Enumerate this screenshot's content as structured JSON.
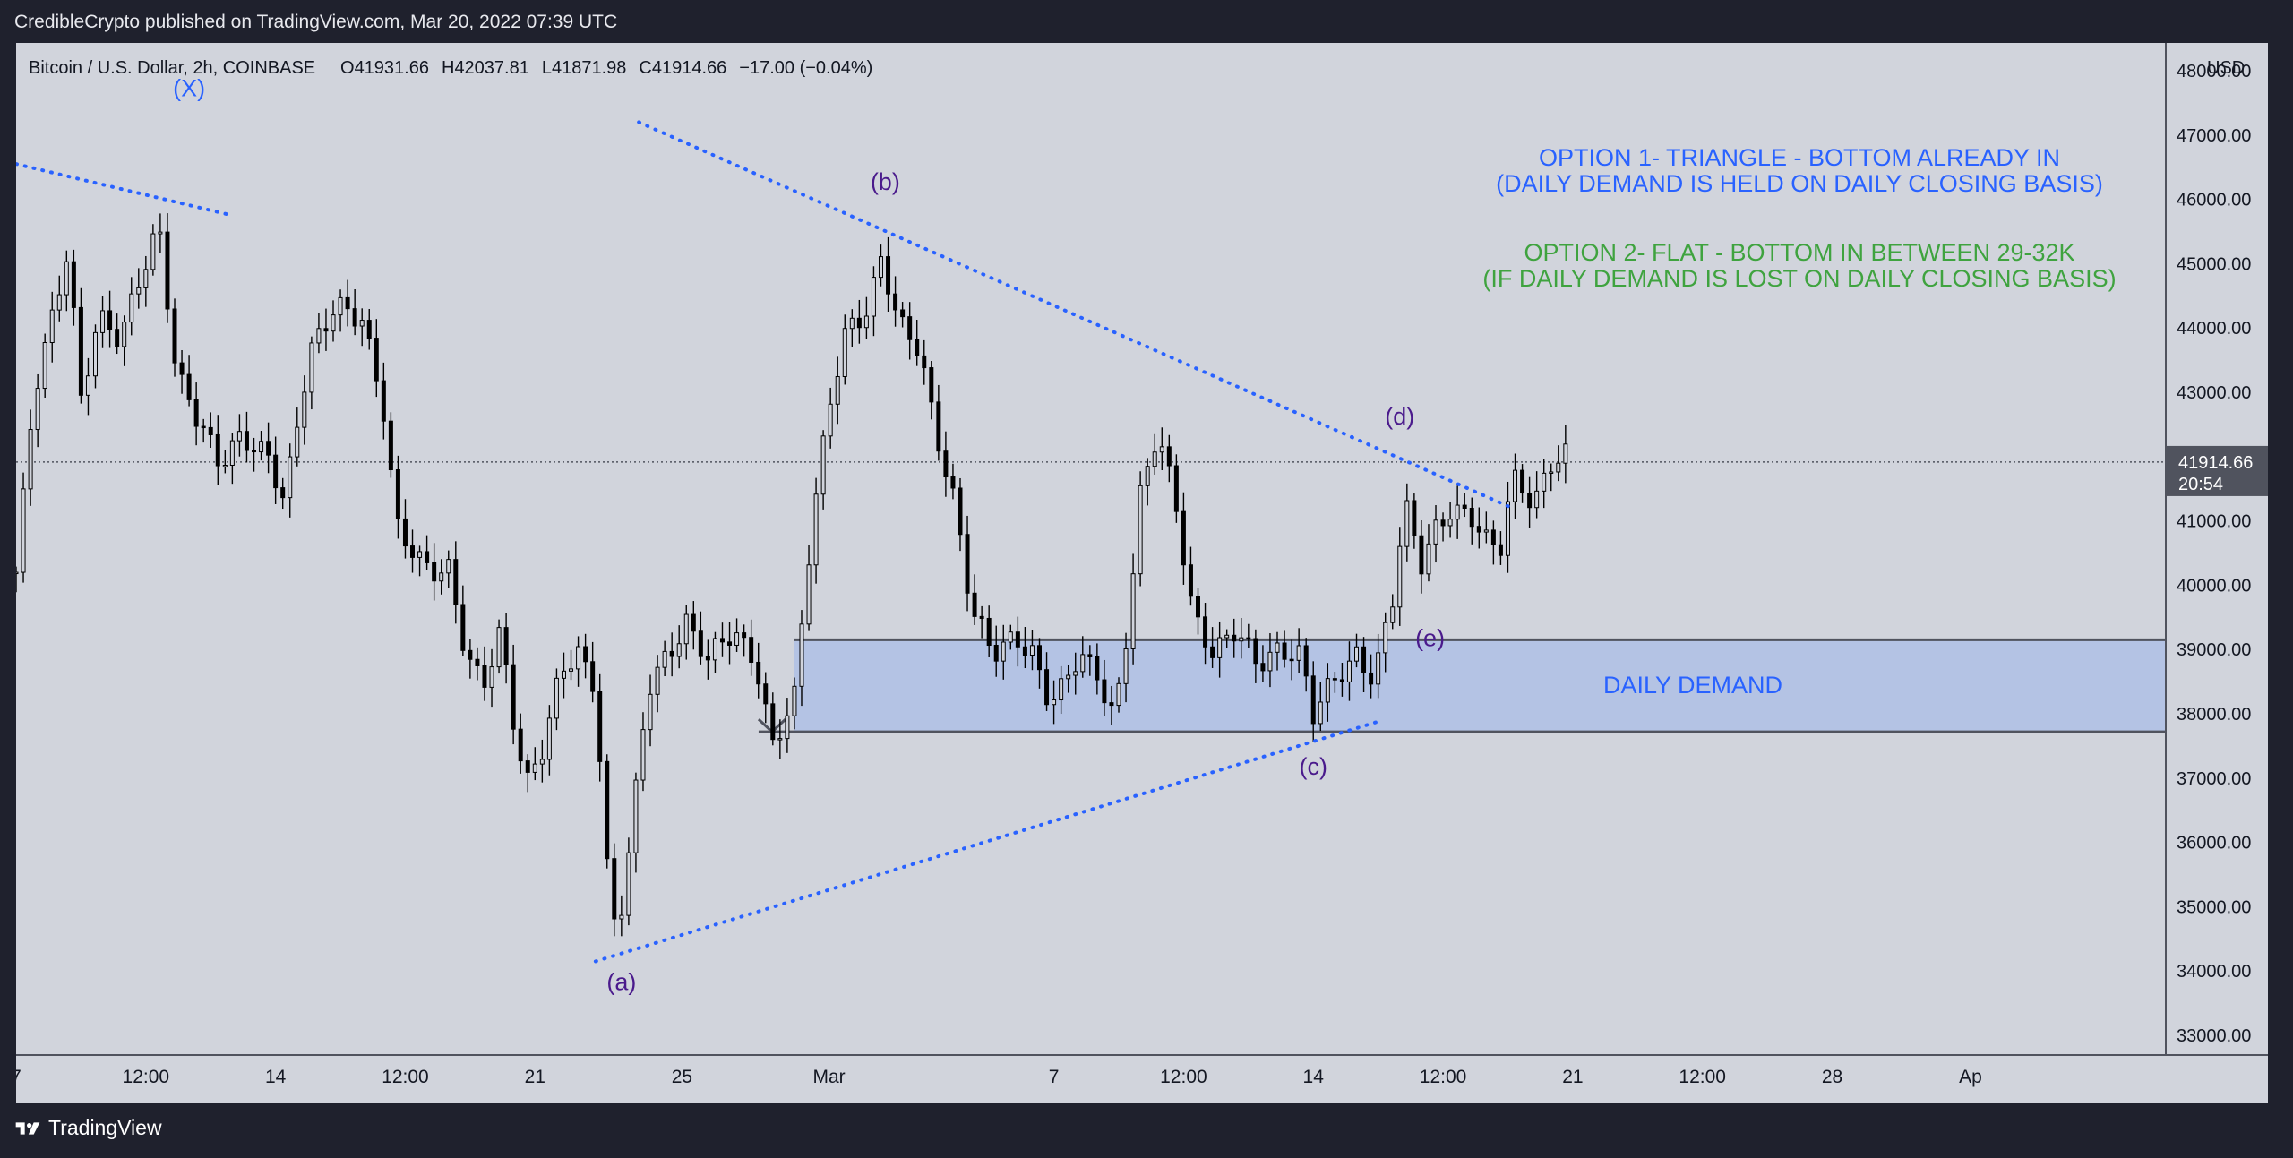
{
  "header": {
    "published": "CredibleCrypto published on TradingView.com, Mar 20, 2022 07:39 UTC"
  },
  "footer": {
    "brand": "TradingView"
  },
  "colors": {
    "background": "#1f212d",
    "chart_bg": "#d1d4dc",
    "candle": "#000000",
    "zone": "#b4c3e4",
    "trendline": "#2962ff",
    "wave_label": "#4a1a8c",
    "option1": "#2962ff",
    "option2": "#3fa33f"
  },
  "chart_data": {
    "type": "candlestick",
    "symbol_info": {
      "name": "Bitcoin / U.S. Dollar, 2h, COINBASE",
      "open_label": "O",
      "open": "41931.66",
      "high_label": "H",
      "high": "42037.81",
      "low_label": "L",
      "low": "41871.98",
      "close_label": "C",
      "close": "41914.66",
      "change": "−17.00 (−0.04%)"
    },
    "currency": "USD",
    "ylim": [
      32800,
      48300
    ],
    "y_ticks": [
      "48000.00",
      "47000.00",
      "46000.00",
      "45000.00",
      "44000.00",
      "43000.00",
      "42000.00",
      "41000.00",
      "40000.00",
      "39000.00",
      "38000.00",
      "37000.00",
      "36000.00",
      "35000.00",
      "34000.00",
      "33000.00"
    ],
    "x_range_days": [
      7,
      32.5
    ],
    "x_ticks": [
      {
        "label": "7",
        "day": 7.0
      },
      {
        "label": "12:00",
        "day": 8.5
      },
      {
        "label": "14",
        "day": 10.0
      },
      {
        "label": "12:00",
        "day": 11.5
      },
      {
        "label": "21",
        "day": 13.0
      },
      {
        "label": "25",
        "day": 14.7
      },
      {
        "label": "Mar",
        "day": 16.4
      },
      {
        "label": "7",
        "day": 19.0
      },
      {
        "label": "12:00",
        "day": 20.5
      },
      {
        "label": "14",
        "day": 22.0
      },
      {
        "label": "12:00",
        "day": 23.5
      },
      {
        "label": "21",
        "day": 25.0
      },
      {
        "label": "12:00",
        "day": 26.5
      },
      {
        "label": "28",
        "day": 28.0
      },
      {
        "label": "Ap",
        "day": 29.6
      }
    ],
    "last_price": {
      "value": "41914.66",
      "countdown": "20:54",
      "level": 41914.66
    },
    "demand_zone": {
      "label": "DAILY DEMAND",
      "top": 39150,
      "bottom": 37720,
      "start_day": 16.0
    },
    "price_path": [
      {
        "day": 7.0,
        "price": 40200
      },
      {
        "day": 7.2,
        "price": 42800
      },
      {
        "day": 7.45,
        "price": 44300
      },
      {
        "day": 7.6,
        "price": 45300
      },
      {
        "day": 7.75,
        "price": 43000
      },
      {
        "day": 7.95,
        "price": 44200
      },
      {
        "day": 8.2,
        "price": 43700
      },
      {
        "day": 8.4,
        "price": 44600
      },
      {
        "day": 8.65,
        "price": 45700
      },
      {
        "day": 8.85,
        "price": 43400
      },
      {
        "day": 9.1,
        "price": 42500
      },
      {
        "day": 9.35,
        "price": 41800
      },
      {
        "day": 9.6,
        "price": 42400
      },
      {
        "day": 9.9,
        "price": 42100
      },
      {
        "day": 10.1,
        "price": 41200
      },
      {
        "day": 10.4,
        "price": 43600
      },
      {
        "day": 10.7,
        "price": 44500
      },
      {
        "day": 11.0,
        "price": 44100
      },
      {
        "day": 11.25,
        "price": 42600
      },
      {
        "day": 11.4,
        "price": 40900
      },
      {
        "day": 11.6,
        "price": 40600
      },
      {
        "day": 11.8,
        "price": 40300
      },
      {
        "day": 12.0,
        "price": 40200
      },
      {
        "day": 12.2,
        "price": 38800
      },
      {
        "day": 12.4,
        "price": 38400
      },
      {
        "day": 12.6,
        "price": 39400
      },
      {
        "day": 12.75,
        "price": 38000
      },
      {
        "day": 12.9,
        "price": 36900
      },
      {
        "day": 13.1,
        "price": 37400
      },
      {
        "day": 13.3,
        "price": 38600
      },
      {
        "day": 13.5,
        "price": 39000
      },
      {
        "day": 13.7,
        "price": 38500
      },
      {
        "day": 13.85,
        "price": 35300
      },
      {
        "day": 13.95,
        "price": 34500
      },
      {
        "day": 14.1,
        "price": 35900
      },
      {
        "day": 14.3,
        "price": 38300
      },
      {
        "day": 14.5,
        "price": 38900
      },
      {
        "day": 14.75,
        "price": 39500
      },
      {
        "day": 15.0,
        "price": 38800
      },
      {
        "day": 15.3,
        "price": 39200
      },
      {
        "day": 15.55,
        "price": 38900
      },
      {
        "day": 15.75,
        "price": 37600
      },
      {
        "day": 16.0,
        "price": 38200
      },
      {
        "day": 16.2,
        "price": 40800
      },
      {
        "day": 16.4,
        "price": 42800
      },
      {
        "day": 16.6,
        "price": 44100
      },
      {
        "day": 16.85,
        "price": 44300
      },
      {
        "day": 17.0,
        "price": 45000
      },
      {
        "day": 17.2,
        "price": 44000
      },
      {
        "day": 17.45,
        "price": 43700
      },
      {
        "day": 17.65,
        "price": 42400
      },
      {
        "day": 17.85,
        "price": 41300
      },
      {
        "day": 18.05,
        "price": 39500
      },
      {
        "day": 18.3,
        "price": 38900
      },
      {
        "day": 18.55,
        "price": 39300
      },
      {
        "day": 18.75,
        "price": 39000
      },
      {
        "day": 18.95,
        "price": 38100
      },
      {
        "day": 19.1,
        "price": 38300
      },
      {
        "day": 19.3,
        "price": 38900
      },
      {
        "day": 19.5,
        "price": 38700
      },
      {
        "day": 19.7,
        "price": 38000
      },
      {
        "day": 19.85,
        "price": 39300
      },
      {
        "day": 20.0,
        "price": 41300
      },
      {
        "day": 20.2,
        "price": 42300
      },
      {
        "day": 20.4,
        "price": 41400
      },
      {
        "day": 20.6,
        "price": 39700
      },
      {
        "day": 20.85,
        "price": 38900
      },
      {
        "day": 21.1,
        "price": 39200
      },
      {
        "day": 21.35,
        "price": 38800
      },
      {
        "day": 21.6,
        "price": 39100
      },
      {
        "day": 21.85,
        "price": 38900
      },
      {
        "day": 22.0,
        "price": 37900
      },
      {
        "day": 22.25,
        "price": 38500
      },
      {
        "day": 22.5,
        "price": 39000
      },
      {
        "day": 22.7,
        "price": 38600
      },
      {
        "day": 22.85,
        "price": 39400
      },
      {
        "day": 22.95,
        "price": 39900
      },
      {
        "day": 23.05,
        "price": 41200
      },
      {
        "day": 23.25,
        "price": 40300
      },
      {
        "day": 23.4,
        "price": 40900
      },
      {
        "day": 23.6,
        "price": 41300
      },
      {
        "day": 23.85,
        "price": 41000
      },
      {
        "day": 24.0,
        "price": 40600
      },
      {
        "day": 24.15,
        "price": 40400
      },
      {
        "day": 24.3,
        "price": 41700
      },
      {
        "day": 24.55,
        "price": 41400
      },
      {
        "day": 24.75,
        "price": 41900
      },
      {
        "day": 24.9,
        "price": 42000
      },
      {
        "day": 24.95,
        "price": 41915
      }
    ],
    "trendlines": [
      {
        "name": "upper-left",
        "p1": {
          "day": 7.0,
          "price": 46550
        },
        "p2": {
          "day": 9.5,
          "price": 45750
        }
      },
      {
        "name": "upper",
        "p1": {
          "day": 14.2,
          "price": 47200
        },
        "p2": {
          "day": 24.3,
          "price": 41200
        }
      },
      {
        "name": "lower",
        "p1": {
          "day": 13.7,
          "price": 34150
        },
        "p2": {
          "day": 22.8,
          "price": 37900
        }
      }
    ],
    "wave_labels": [
      {
        "text": "(X)",
        "day": 9.0,
        "price": 47600,
        "color": "#2962ff"
      },
      {
        "text": "(b)",
        "day": 17.05,
        "price": 46150,
        "color": "#4a1a8c"
      },
      {
        "text": "(d)",
        "day": 23.0,
        "price": 42500,
        "color": "#4a1a8c"
      },
      {
        "text": "(a)",
        "day": 14.0,
        "price": 33700,
        "color": "#4a1a8c"
      },
      {
        "text": "(c)",
        "day": 22.0,
        "price": 37050,
        "color": "#4a1a8c"
      },
      {
        "text": "(e)",
        "day": 23.35,
        "price": 39050,
        "color": "#4a1a8c"
      }
    ],
    "annotations": [
      {
        "text": "OPTION 1- TRIANGLE - BOTTOM ALREADY IN",
        "color": "#2962ff"
      },
      {
        "text": "(DAILY DEMAND IS HELD ON DAILY CLOSING BASIS)",
        "color": "#2962ff"
      },
      {
        "text": "OPTION 2- FLAT - BOTTOM IN BETWEEN 29-32K",
        "color": "#3fa33f"
      },
      {
        "text": "(IF DAILY DEMAND IS LOST ON DAILY CLOSING BASIS)",
        "color": "#3fa33f"
      }
    ]
  }
}
